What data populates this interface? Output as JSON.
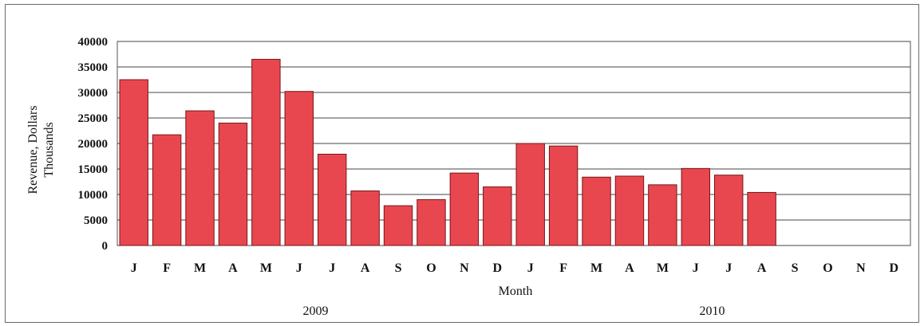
{
  "chart_data": {
    "type": "bar",
    "title": "",
    "xlabel": "Month",
    "ylabel_line1": "Revenue, Dollars",
    "ylabel_line2": "Thousands",
    "ylim": [
      0,
      40000
    ],
    "yticks": [
      0,
      5000,
      10000,
      15000,
      20000,
      25000,
      30000,
      35000,
      40000
    ],
    "grid": true,
    "legend": "none",
    "bar_color": "#e8474f",
    "bar_stroke": "#7a1418",
    "categories": [
      "J",
      "F",
      "M",
      "A",
      "M",
      "J",
      "J",
      "A",
      "S",
      "O",
      "N",
      "D",
      "J",
      "F",
      "M",
      "A",
      "M",
      "J",
      "J",
      "A",
      "S",
      "O",
      "N",
      "D"
    ],
    "values": [
      32500,
      21700,
      26400,
      24000,
      36500,
      30200,
      17900,
      10700,
      7800,
      9000,
      14200,
      11500,
      20000,
      19500,
      13400,
      13600,
      11900,
      15100,
      13800,
      10400,
      null,
      null,
      null,
      null
    ],
    "year_groups": [
      {
        "label": "2009",
        "from": 0,
        "to": 11
      },
      {
        "label": "2010",
        "from": 12,
        "to": 23
      }
    ]
  }
}
